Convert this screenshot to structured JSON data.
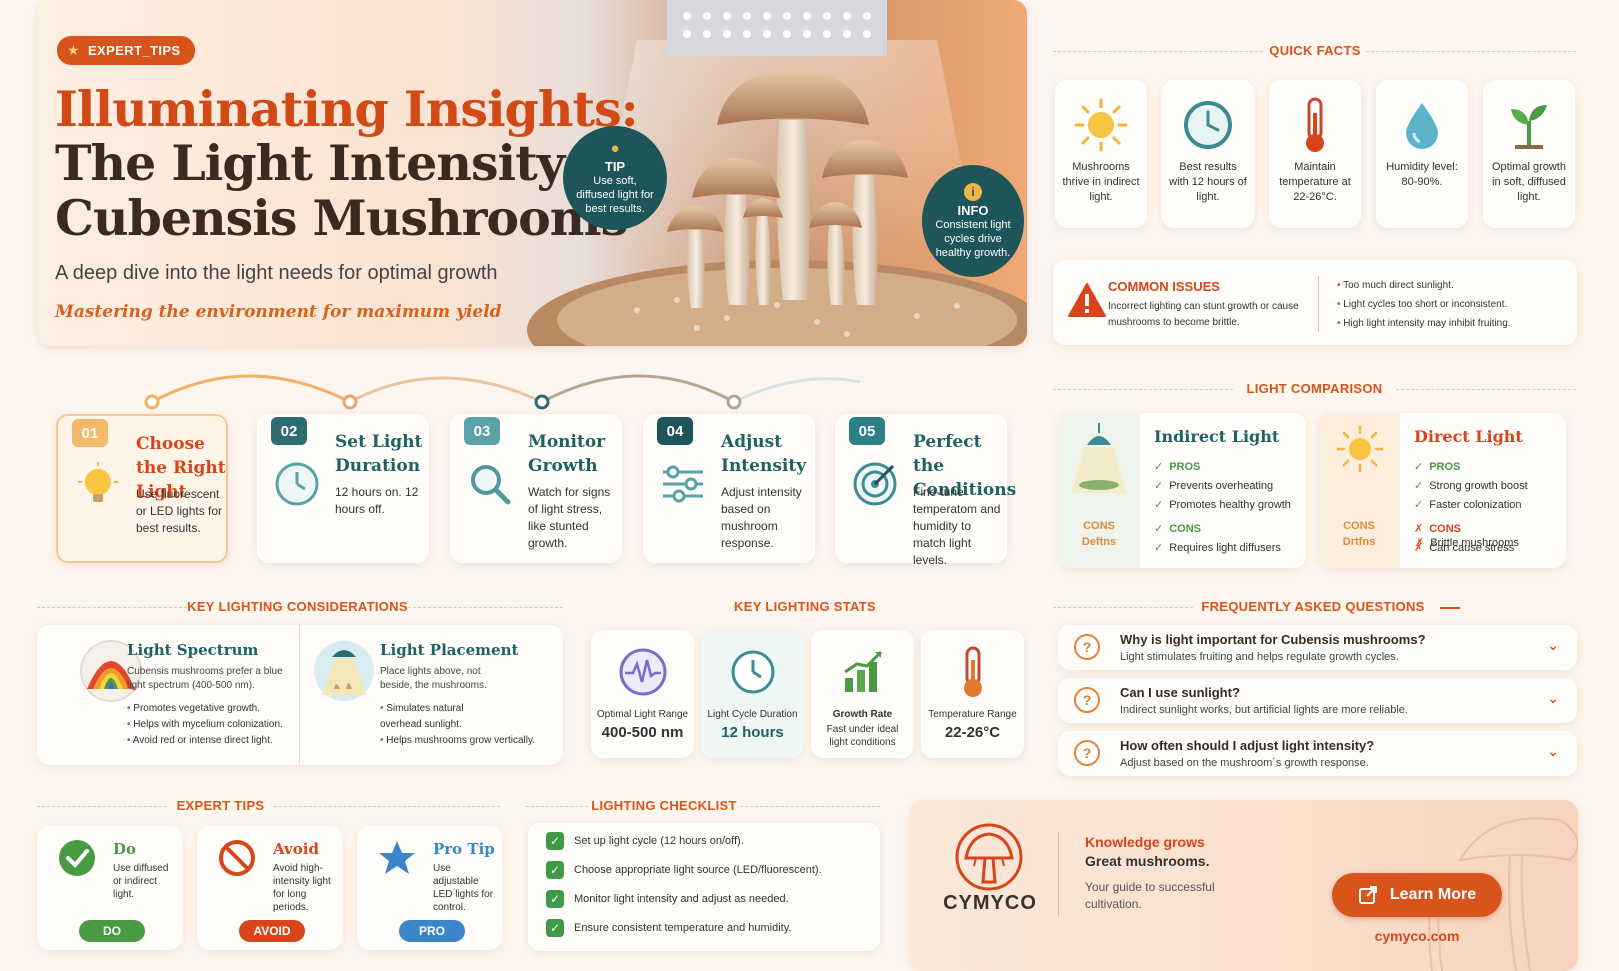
{
  "hero": {
    "badge": "EXPERT_TIPS",
    "title_line1": "Illuminating Insights:",
    "title_line2": "The Light Intensity of",
    "title_line3": "Cubensis Mushrooms",
    "subtitle": "A deep dive into the light needs for optimal growth",
    "tagline": "Mastering the environment for maximum yield",
    "tip_bubble": {
      "head": "TIP",
      "text": "Use soft, diffused light for best results."
    },
    "info_bubble": {
      "head": "INFO",
      "text": "Consistent light cycles drive healthy growth."
    }
  },
  "quick_facts": {
    "title": "QUICK FACTS",
    "items": [
      {
        "icon": "sun-icon",
        "text": "Mushrooms thrive in indirect light."
      },
      {
        "icon": "clock-icon",
        "text": "Best results with 12 hours of light."
      },
      {
        "icon": "thermometer-icon",
        "text": "Maintain temperature at 22-26°C."
      },
      {
        "icon": "water-drop-icon",
        "text": "Humidity level: 80-90%."
      },
      {
        "icon": "sprout-icon",
        "text": "Optimal growth in soft, diffused light."
      }
    ]
  },
  "common_issues": {
    "title": "COMMON ISSUES",
    "text": "Incorrect lighting can stunt growth or cause mushrooms to become brittle.",
    "bullets": [
      "Too much direct sunlight.",
      "Light cycles too short or inconsistent.",
      "High light intensity may inhibit fruiting."
    ]
  },
  "steps": [
    {
      "num": "01",
      "title": "Choose the Right Light",
      "body": "Use fluorescent or LED lights for best results.",
      "icon": "light-bulb-icon"
    },
    {
      "num": "02",
      "title": "Set Light Duration",
      "body": "12 hours on. 12 hours off.",
      "icon": "clock-icon"
    },
    {
      "num": "03",
      "title": "Monitor Growth",
      "body": "Watch for signs of light stress, like stunted growth.",
      "icon": "magnifier-icon"
    },
    {
      "num": "04",
      "title": "Adjust Intensity",
      "body": "Adjust intensity based on mushroom response.",
      "icon": "sliders-icon"
    },
    {
      "num": "05",
      "title": "Perfect the Conditions",
      "body": "Fine-tune temperatom and humidity to match light levels.",
      "icon": "target-icon"
    }
  ],
  "comparison": {
    "title": "LIGHT COMPARISON",
    "indirect": {
      "title": "Indirect Light",
      "pros_label": "PROS",
      "pros": [
        "Prevents overheating",
        "Promotes healthy growth"
      ],
      "cons_label": "CONS",
      "cons": [
        "Requires light diffusers"
      ],
      "side_text_1": "CONS",
      "side_text_2": "Deftns"
    },
    "direct": {
      "title": "Direct Light",
      "pros_label": "PROS",
      "pros": [
        "Strong growth boost",
        "Faster colonization"
      ],
      "cons_label": "CONS",
      "cons": [
        "Can cause stress",
        "Brittle mushrooms"
      ],
      "side_text_1": "CONS",
      "side_text_2": "Drtfns"
    }
  },
  "considerations": {
    "title": "KEY LIGHTING CONSIDERATIONS",
    "spectrum": {
      "title": "Light Spectrum",
      "desc": "Cubensis mushrooms prefer a blue light spectrum (400-500 nm).",
      "bullets": [
        "Promotes vegetative growth.",
        "Helps with mycelium colonization.",
        "Avoid red or intense direct light."
      ]
    },
    "placement": {
      "title": "Light Placement",
      "desc": "Place lights above, not beside, the mushrooms.",
      "bullets": [
        "Simulates natural overhead sunlight.",
        "Helps mushrooms grow vertically."
      ]
    }
  },
  "stats": {
    "title": "KEY LIGHTING STATS",
    "items": [
      {
        "label": "Optimal Light Range",
        "value": "400-500 nm",
        "icon": "waveform-icon"
      },
      {
        "label": "Light Cycle Duration",
        "value": "12 hours",
        "icon": "clock-icon"
      },
      {
        "label": "Growth Rate",
        "value": "Fast under ideal light conditions",
        "icon": "bar-chart-icon"
      },
      {
        "label": "Temperature Range",
        "value": "22-26°C",
        "icon": "thermometer-icon"
      }
    ]
  },
  "faq": {
    "title": "FREQUENTLY ASKED QUESTIONS",
    "items": [
      {
        "q": "Why is light important for Cubensis mushrooms?",
        "a": "Light stimulates fruiting and helps regulate growth cycles."
      },
      {
        "q": "Can I use sunlight?",
        "a": "Indirect sunlight works, but artificial lights are more reliable."
      },
      {
        "q": "How often should I adjust light intensity?",
        "a": "Adjust based on the mushroom´s growth response."
      }
    ]
  },
  "expert_tips": {
    "title": "EXPERT TIPS",
    "items": [
      {
        "title": "Do",
        "desc": "Use diffused or indirect light.",
        "pill": "DO",
        "color": "#4a9a45"
      },
      {
        "title": "Avoid",
        "desc": "Avoid high-intensity light for long periods.",
        "pill": "AVOID",
        "color": "#d9451a"
      },
      {
        "title": "Pro Tip",
        "desc": "Use adjustable LED lights for control.",
        "pill": "PRO",
        "color": "#3a86c8"
      }
    ]
  },
  "checklist": {
    "title": "LIGHTING CHECKLIST",
    "items": [
      "Set up light cycle (12 hours on/off).",
      "Choose appropriate light source (LED/fluorescent).",
      "Monitor light intensity and adjust as needed.",
      "Ensure consistent temperature and humidity."
    ]
  },
  "cta": {
    "brand": "CYMYCO",
    "line1": "Knowledge grows",
    "line2": "Great mushrooms.",
    "desc": "Your guide to successful cultivation.",
    "button": "Learn More",
    "url": "cymyco.com"
  },
  "colors": {
    "accent": "#d9541a",
    "teal": "#1f6266",
    "cream": "#fdf6ef",
    "green": "#4a9a45"
  }
}
